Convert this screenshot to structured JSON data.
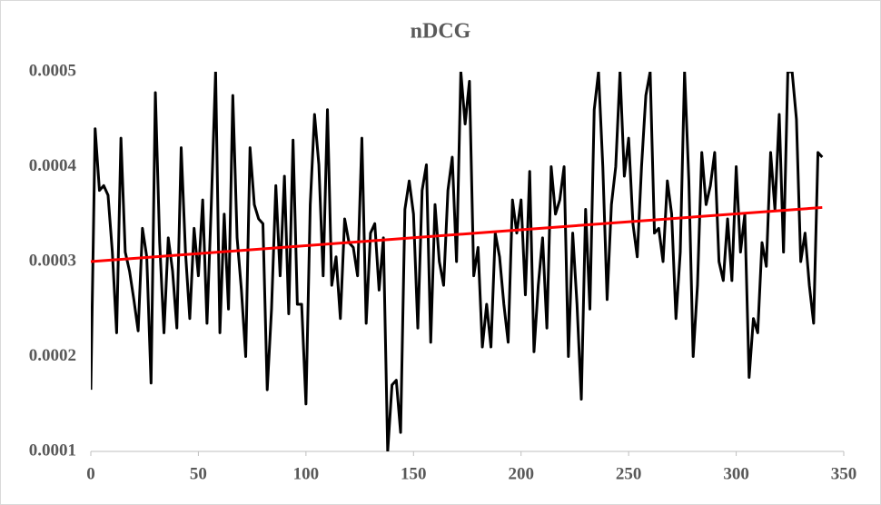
{
  "chart_data": {
    "type": "line",
    "title": "nDCG",
    "x": [
      0,
      2,
      4,
      6,
      8,
      10,
      12,
      14,
      16,
      18,
      20,
      22,
      24,
      26,
      28,
      30,
      32,
      34,
      36,
      38,
      40,
      42,
      44,
      46,
      48,
      50,
      52,
      54,
      56,
      58,
      60,
      62,
      64,
      66,
      68,
      70,
      72,
      74,
      76,
      78,
      80,
      82,
      84,
      86,
      88,
      90,
      92,
      94,
      96,
      98,
      100,
      102,
      104,
      106,
      108,
      110,
      112,
      114,
      116,
      118,
      120,
      122,
      124,
      126,
      128,
      130,
      132,
      134,
      136,
      138,
      140,
      142,
      144,
      146,
      148,
      150,
      152,
      154,
      156,
      158,
      160,
      162,
      164,
      166,
      168,
      170,
      172,
      174,
      176,
      178,
      180,
      182,
      184,
      186,
      188,
      190,
      192,
      194,
      196,
      198,
      200,
      202,
      204,
      206,
      208,
      210,
      212,
      214,
      216,
      218,
      220,
      222,
      224,
      226,
      228,
      230,
      232,
      234,
      236,
      238,
      240,
      242,
      244,
      246,
      248,
      250,
      252,
      254,
      256,
      258,
      260,
      262,
      264,
      266,
      268,
      270,
      272,
      274,
      276,
      278,
      280,
      282,
      284,
      286,
      288,
      290,
      292,
      294,
      296,
      298,
      300,
      302,
      304,
      306,
      308,
      310,
      312,
      314,
      316,
      318,
      320,
      322,
      324,
      326,
      328,
      330,
      332,
      334,
      336,
      338,
      340
    ],
    "series": [
      {
        "color": "#000000",
        "values": [
          0.000165,
          0.00044,
          0.000375,
          0.00038,
          0.00037,
          0.00031,
          0.000225,
          0.00043,
          0.00031,
          0.00029,
          0.00026,
          0.000227,
          0.000335,
          0.000305,
          0.000172,
          0.000478,
          0.00032,
          0.000225,
          0.000325,
          0.00029,
          0.00023,
          0.00042,
          0.00031,
          0.00024,
          0.000335,
          0.000285,
          0.000365,
          0.000235,
          0.00036,
          0.0005,
          0.000225,
          0.00035,
          0.00025,
          0.000475,
          0.000325,
          0.00027,
          0.0002,
          0.00042,
          0.00036,
          0.000345,
          0.00034,
          0.000165,
          0.00025,
          0.00038,
          0.000285,
          0.00039,
          0.000245,
          0.000428,
          0.000255,
          0.000255,
          0.00015,
          0.00036,
          0.000455,
          0.000402,
          0.000285,
          0.00046,
          0.000275,
          0.000305,
          0.00024,
          0.000345,
          0.00032,
          0.000315,
          0.000285,
          0.00043,
          0.000235,
          0.00033,
          0.00034,
          0.00027,
          0.000325,
          0.0001,
          0.00017,
          0.000175,
          0.00012,
          0.000355,
          0.000385,
          0.00035,
          0.00023,
          0.000375,
          0.000402,
          0.000215,
          0.00036,
          0.0003,
          0.000275,
          0.000375,
          0.00041,
          0.0003,
          0.0005,
          0.000445,
          0.00049,
          0.000285,
          0.000315,
          0.00021,
          0.000255,
          0.00021,
          0.00033,
          0.000305,
          0.000255,
          0.000215,
          0.000365,
          0.00033,
          0.000365,
          0.000265,
          0.000395,
          0.000205,
          0.000275,
          0.000325,
          0.00023,
          0.0004,
          0.00035,
          0.000365,
          0.0004,
          0.0002,
          0.00033,
          0.000255,
          0.000155,
          0.000355,
          0.00025,
          0.00046,
          0.0005,
          0.0004,
          0.00026,
          0.00036,
          0.0004,
          0.0005,
          0.00039,
          0.00043,
          0.00034,
          0.000305,
          0.0004,
          0.000475,
          0.0005,
          0.00033,
          0.000335,
          0.0003,
          0.000385,
          0.00035,
          0.00024,
          0.00031,
          0.0005,
          0.000385,
          0.0002,
          0.000275,
          0.000415,
          0.00036,
          0.00038,
          0.000415,
          0.0003,
          0.00028,
          0.000345,
          0.00028,
          0.0004,
          0.00031,
          0.00035,
          0.000178,
          0.00024,
          0.000225,
          0.00032,
          0.000295,
          0.000415,
          0.000355,
          0.000455,
          0.00031,
          0.0005,
          0.0005,
          0.00045,
          0.0003,
          0.00033,
          0.000275,
          0.000235,
          0.000415,
          0.00041
        ]
      }
    ],
    "trendline": {
      "color": "#ff0000",
      "x": [
        0,
        340
      ],
      "values": [
        0.0003,
        0.000357
      ]
    },
    "xlim": [
      0,
      350
    ],
    "xticks": [
      0,
      50,
      100,
      150,
      200,
      250,
      300,
      350
    ],
    "ylim": [
      0.0001,
      0.0005
    ],
    "yticks": [
      0.0001,
      0.0002,
      0.0003,
      0.0004,
      0.0005
    ],
    "grid": false
  }
}
